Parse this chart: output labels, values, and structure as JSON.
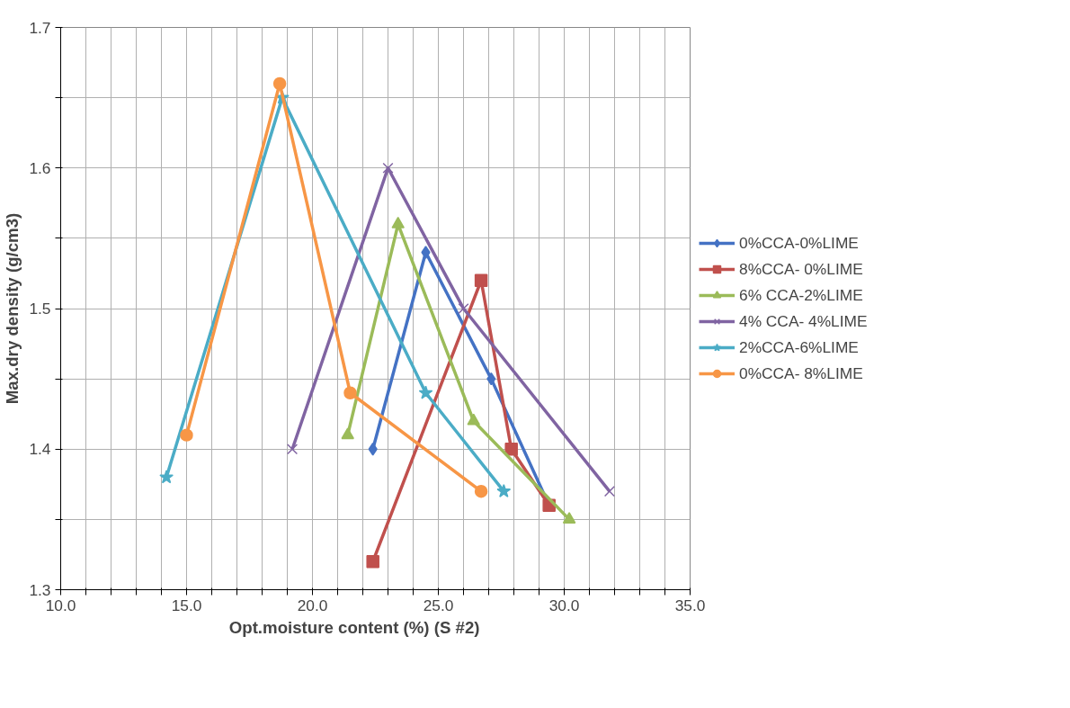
{
  "chart_data": {
    "type": "line",
    "xlabel": "Opt.moisture content (%)          (S #2)",
    "ylabel": "Max.dry density (g/cm3)",
    "xlim": [
      10,
      35
    ],
    "ylim": [
      1.3,
      1.7
    ],
    "xticks": [
      {
        "value": 10,
        "label": "10.0"
      },
      {
        "value": 11,
        "label": null
      },
      {
        "value": 12,
        "label": null
      },
      {
        "value": 13,
        "label": null
      },
      {
        "value": 14,
        "label": null
      },
      {
        "value": 15,
        "label": "15.0"
      },
      {
        "value": 16,
        "label": null
      },
      {
        "value": 17,
        "label": null
      },
      {
        "value": 18,
        "label": null
      },
      {
        "value": 19,
        "label": null
      },
      {
        "value": 20,
        "label": "20.0"
      },
      {
        "value": 21,
        "label": null
      },
      {
        "value": 22,
        "label": null
      },
      {
        "value": 23,
        "label": null
      },
      {
        "value": 24,
        "label": null
      },
      {
        "value": 25,
        "label": "25.0"
      },
      {
        "value": 26,
        "label": null
      },
      {
        "value": 27,
        "label": null
      },
      {
        "value": 28,
        "label": null
      },
      {
        "value": 29,
        "label": null
      },
      {
        "value": 30,
        "label": "30.0"
      },
      {
        "value": 31,
        "label": null
      },
      {
        "value": 32,
        "label": null
      },
      {
        "value": 33,
        "label": null
      },
      {
        "value": 34,
        "label": null
      },
      {
        "value": 35,
        "label": "35.0"
      }
    ],
    "yticks": [
      1.3,
      {
        "value": 1.35,
        "label": null
      },
      1.4,
      {
        "value": 1.45,
        "label": null
      },
      1.5,
      {
        "value": 1.55,
        "label": null
      },
      1.6,
      {
        "value": 1.65,
        "label": null
      },
      1.7
    ],
    "grid": true,
    "legend": "right",
    "line_style": "solid",
    "series": [
      {
        "name": "0%CCA-0%LIME",
        "color": "#4472c4",
        "marker": "diamond",
        "x": [
          22.4,
          24.5,
          27.1,
          29.4
        ],
        "values": [
          1.4,
          1.54,
          1.45,
          1.36
        ]
      },
      {
        "name": "8%CCA- 0%LIME",
        "color": "#c0504d",
        "marker": "square",
        "x": [
          22.4,
          26.7,
          27.9,
          29.4
        ],
        "values": [
          1.32,
          1.52,
          1.4,
          1.36
        ]
      },
      {
        "name": "6% CCA-2%LIME",
        "color": "#9bbb59",
        "marker": "triangle",
        "x": [
          21.4,
          23.4,
          26.4,
          30.2
        ],
        "values": [
          1.41,
          1.56,
          1.42,
          1.35
        ]
      },
      {
        "name": "4% CCA- 4%LIME",
        "color": "#8064a2",
        "marker": "cross",
        "x": [
          19.2,
          23.0,
          26.0,
          31.8
        ],
        "values": [
          1.4,
          1.6,
          1.5,
          1.37
        ]
      },
      {
        "name": "2%CCA-6%LIME",
        "color": "#4bacc6",
        "marker": "star",
        "x": [
          14.2,
          18.8,
          24.5,
          27.6
        ],
        "values": [
          1.38,
          1.65,
          1.44,
          1.37
        ]
      },
      {
        "name": "0%CCA- 8%LIME",
        "color": "#f79646",
        "marker": "circle",
        "x": [
          15.0,
          18.7,
          21.5,
          26.7
        ],
        "values": [
          1.41,
          1.66,
          1.44,
          1.37
        ]
      }
    ]
  }
}
